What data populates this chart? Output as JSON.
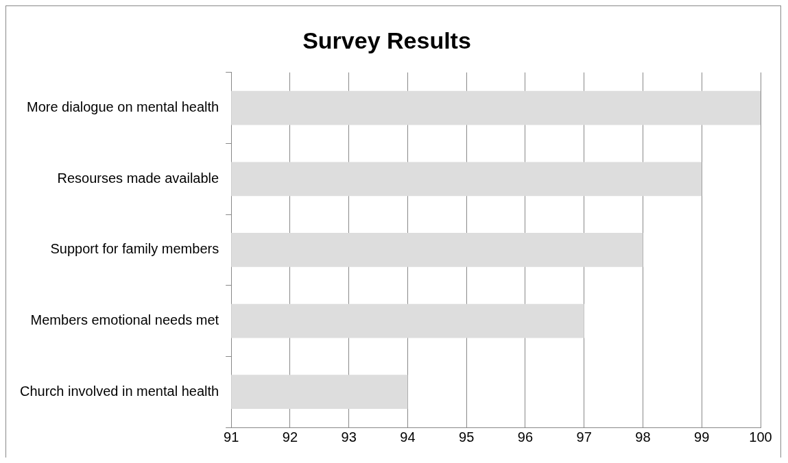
{
  "chart_data": {
    "type": "bar",
    "orientation": "horizontal",
    "title": "Survey Results",
    "categories": [
      "More dialogue on mental health",
      "Resourses made available",
      "Support for family members",
      "Members emotional needs met",
      "Church involved in mental health"
    ],
    "values": [
      100,
      99,
      98,
      97,
      94
    ],
    "color": "#dddddd",
    "xlim": [
      91,
      100
    ],
    "xticks": [
      91,
      92,
      93,
      94,
      95,
      96,
      97,
      98,
      99,
      100
    ],
    "grid": "x"
  }
}
